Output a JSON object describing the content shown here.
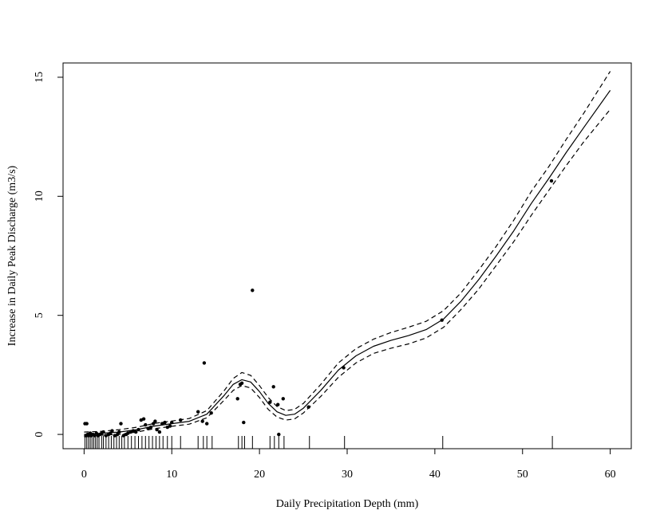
{
  "chart_data": {
    "type": "line",
    "title": "",
    "xlabel": "Daily Precipitation Depth (mm)",
    "ylabel": "Increase in Daily Peak Discharge (m3/s)",
    "xlim": [
      -2.4,
      62.4
    ],
    "ylim": [
      -0.6,
      15.6
    ],
    "xticks": [
      0,
      10,
      20,
      30,
      40,
      50,
      60
    ],
    "yticks": [
      0,
      5,
      10,
      15
    ],
    "grid": false,
    "legend": "none",
    "series": [
      {
        "role": "fit",
        "style": "solid",
        "x": [
          0,
          2,
          4,
          6,
          8,
          10,
          12,
          14,
          16,
          17,
          18,
          19,
          20,
          21,
          22,
          23,
          24,
          25,
          27,
          29,
          31,
          33,
          35,
          37,
          39,
          41,
          43,
          45,
          47,
          49,
          51,
          53,
          55,
          57,
          60
        ],
        "y": [
          0.0,
          0.05,
          0.1,
          0.2,
          0.35,
          0.45,
          0.55,
          0.85,
          1.65,
          2.1,
          2.3,
          2.2,
          1.8,
          1.3,
          0.95,
          0.8,
          0.85,
          1.1,
          1.85,
          2.7,
          3.3,
          3.7,
          3.95,
          4.15,
          4.4,
          4.85,
          5.6,
          6.5,
          7.5,
          8.55,
          9.7,
          10.75,
          11.85,
          12.9,
          14.45
        ]
      },
      {
        "role": "upper-band",
        "style": "dashed",
        "x": [
          0,
          2,
          4,
          6,
          8,
          10,
          12,
          14,
          16,
          17,
          18,
          19,
          20,
          21,
          22,
          23,
          24,
          25,
          27,
          29,
          31,
          33,
          35,
          37,
          39,
          41,
          43,
          45,
          47,
          49,
          51,
          53,
          55,
          57,
          60
        ],
        "y": [
          0.1,
          0.13,
          0.2,
          0.3,
          0.46,
          0.56,
          0.67,
          1.0,
          1.85,
          2.35,
          2.6,
          2.48,
          2.05,
          1.55,
          1.17,
          1.0,
          1.05,
          1.3,
          2.1,
          3.0,
          3.6,
          4.0,
          4.28,
          4.5,
          4.75,
          5.2,
          5.95,
          6.9,
          7.9,
          9.0,
          10.2,
          11.25,
          12.4,
          13.5,
          15.25
        ]
      },
      {
        "role": "lower-band",
        "style": "dashed",
        "x": [
          0,
          2,
          4,
          6,
          8,
          10,
          12,
          14,
          16,
          17,
          18,
          19,
          20,
          21,
          22,
          23,
          24,
          25,
          27,
          29,
          31,
          33,
          35,
          37,
          39,
          41,
          43,
          45,
          47,
          49,
          51,
          53,
          55,
          57,
          60
        ],
        "y": [
          -0.1,
          -0.03,
          0.0,
          0.1,
          0.24,
          0.34,
          0.43,
          0.7,
          1.45,
          1.85,
          2.05,
          1.95,
          1.55,
          1.05,
          0.73,
          0.6,
          0.65,
          0.9,
          1.6,
          2.4,
          3.0,
          3.4,
          3.62,
          3.8,
          4.05,
          4.5,
          5.25,
          6.1,
          7.1,
          8.1,
          9.2,
          10.25,
          11.3,
          12.3,
          13.65
        ]
      }
    ],
    "points": {
      "x": [
        0.1,
        0.2,
        0.3,
        0.4,
        0.5,
        0.6,
        0.7,
        0.8,
        1.0,
        1.2,
        1.4,
        1.6,
        1.8,
        2.0,
        2.2,
        2.5,
        2.8,
        3.0,
        3.2,
        3.5,
        3.8,
        4.0,
        4.2,
        4.5,
        4.8,
        5.0,
        5.3,
        5.6,
        5.9,
        6.2,
        6.5,
        6.8,
        7.0,
        7.3,
        7.6,
        7.9,
        8.1,
        8.3,
        8.6,
        8.9,
        9.2,
        9.5,
        9.8,
        10.0,
        11.0,
        13.0,
        13.5,
        13.7,
        14.0,
        14.5,
        17.5,
        17.8,
        18.0,
        18.2,
        19.2,
        21.2,
        21.6,
        22.1,
        22.2,
        22.7,
        25.6,
        29.6,
        40.8,
        53.3
      ],
      "y": [
        0.45,
        -0.05,
        0.45,
        0.0,
        -0.05,
        0.0,
        0.05,
        -0.05,
        0.0,
        -0.05,
        0.05,
        -0.05,
        0.0,
        0.05,
        0.1,
        -0.05,
        0.0,
        0.05,
        0.15,
        -0.05,
        0.0,
        0.1,
        0.45,
        -0.05,
        0.0,
        0.05,
        0.1,
        0.15,
        0.1,
        0.2,
        0.6,
        0.65,
        0.4,
        0.25,
        0.3,
        0.45,
        0.55,
        0.2,
        0.1,
        0.45,
        0.5,
        0.3,
        0.35,
        0.5,
        0.6,
        0.95,
        0.55,
        3.0,
        0.45,
        0.9,
        1.5,
        2.1,
        2.15,
        0.5,
        6.05,
        1.35,
        2.0,
        1.25,
        0.0,
        1.5,
        1.15,
        2.8,
        4.8,
        10.65
      ]
    },
    "rug": [
      0.1,
      0.3,
      0.5,
      0.7,
      0.9,
      1.1,
      1.3,
      1.5,
      1.7,
      2.0,
      2.2,
      2.5,
      2.8,
      3.1,
      3.4,
      3.7,
      4.0,
      4.3,
      4.6,
      5.0,
      5.4,
      5.8,
      6.2,
      6.6,
      7.0,
      7.4,
      7.8,
      8.2,
      8.6,
      9.0,
      9.5,
      10.0,
      11.0,
      13.0,
      13.6,
      14.0,
      14.6,
      17.6,
      18.0,
      18.3,
      19.2,
      21.2,
      21.7,
      22.2,
      22.8,
      25.7,
      29.7,
      40.9,
      53.4
    ]
  }
}
